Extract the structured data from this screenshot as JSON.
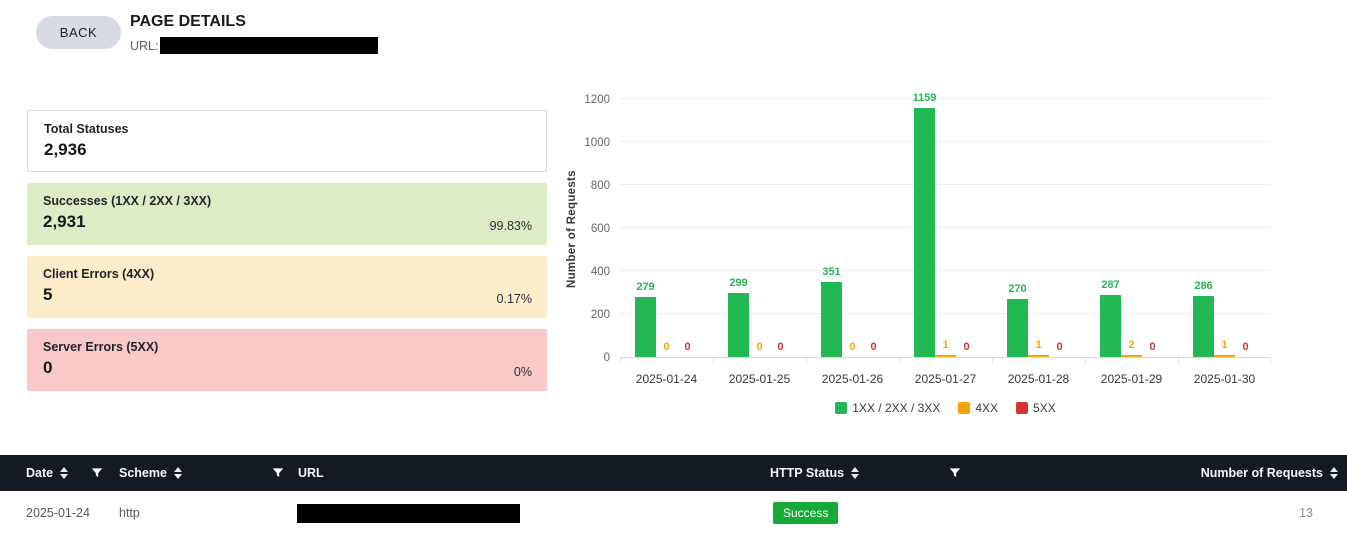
{
  "header": {
    "back_label": "BACK",
    "title": "PAGE DETAILS",
    "url_label": "URL:",
    "url_redacted": true
  },
  "stats": {
    "cards": [
      {
        "label": "Total Statuses",
        "value": "2,936",
        "percent": "",
        "variant": "neutral"
      },
      {
        "label": "Successes (1XX / 2XX / 3XX)",
        "value": "2,931",
        "percent": "99.83%",
        "variant": "success"
      },
      {
        "label": "Client Errors (4XX)",
        "value": "5",
        "percent": "0.17%",
        "variant": "warning"
      },
      {
        "label": "Server Errors (5XX)",
        "value": "0",
        "percent": "0%",
        "variant": "danger"
      }
    ]
  },
  "chart_data": {
    "type": "bar",
    "categories": [
      "2025-01-24",
      "2025-01-25",
      "2025-01-26",
      "2025-01-27",
      "2025-01-28",
      "2025-01-29",
      "2025-01-30"
    ],
    "series": [
      {
        "name": "1XX / 2XX / 3XX",
        "color": "#22b853",
        "values": [
          279,
          299,
          351,
          1159,
          270,
          287,
          286
        ]
      },
      {
        "name": "4XX",
        "color": "#f8a408",
        "values": [
          0,
          0,
          0,
          1,
          1,
          2,
          1
        ]
      },
      {
        "name": "5XX",
        "color": "#d7342d",
        "values": [
          0,
          0,
          0,
          0,
          0,
          0,
          0
        ]
      }
    ],
    "title": "",
    "xlabel": "",
    "ylabel": "Number of Requests",
    "ylim": [
      0,
      1200
    ],
    "yticks": [
      0,
      200,
      400,
      600,
      800,
      1000,
      1200
    ],
    "grid": true,
    "legend_position": "bottom",
    "data_labels": true
  },
  "table": {
    "columns": [
      {
        "label": "Date",
        "sortable": true,
        "filterable": true
      },
      {
        "label": "Scheme",
        "sortable": true,
        "filterable": true
      },
      {
        "label": "URL",
        "sortable": false,
        "filterable": false
      },
      {
        "label": "HTTP Status",
        "sortable": true,
        "filterable": true
      },
      {
        "label": "Number of Requests",
        "sortable": true,
        "filterable": false
      }
    ],
    "rows": [
      {
        "date": "2025-01-24",
        "scheme": "http",
        "url_redacted": true,
        "status": "Success",
        "requests": "13"
      }
    ]
  },
  "colors": {
    "chart_green": "#22b853",
    "chart_orange": "#f8a408",
    "chart_red": "#d7342d",
    "badge_success_bg": "#16ab39",
    "card_success_bg": "#dcedc5",
    "card_warning_bg": "#fcedca",
    "card_danger_bg": "#f9c9ca",
    "table_header_bg": "#141a21",
    "back_button_bg": "#d6dbe4"
  }
}
